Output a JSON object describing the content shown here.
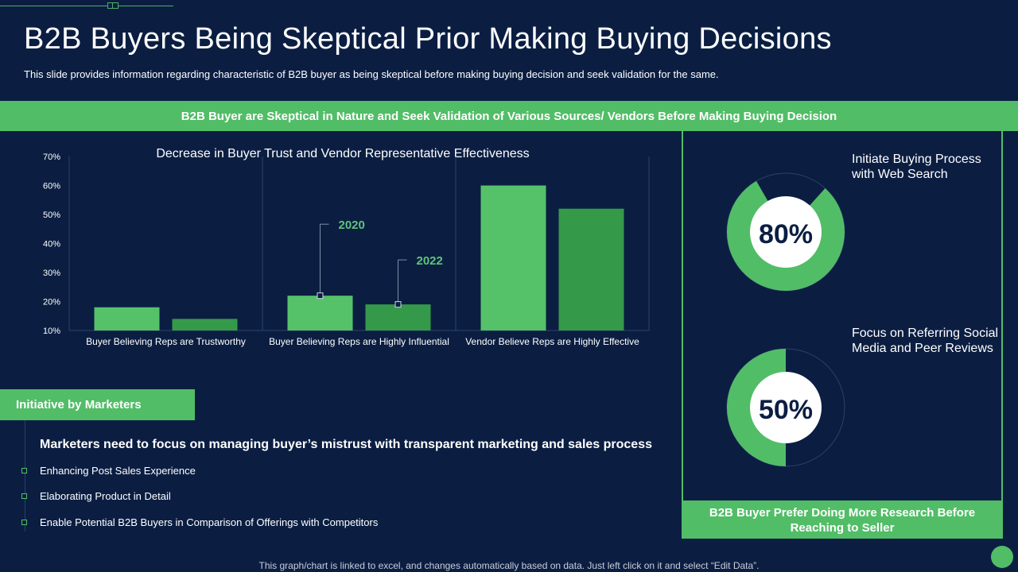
{
  "title": "B2B Buyers Being Skeptical Prior Making Buying Decisions",
  "subtitle": "This slide provides information regarding characteristic of B2B buyer as being skeptical before making buying decision and seek validation for the same.",
  "banner": "B2B Buyer are Skeptical in Nature and Seek Validation of Various Sources/ Vendors Before Making Buying Decision",
  "chart_data": {
    "type": "bar",
    "title": "Decrease in Buyer Trust and Vendor Representative Effectiveness",
    "categories": [
      "Buyer Believing Reps are Trustworthy",
      "Buyer Believing Reps are Highly Influential",
      "Vendor Believe Reps are Highly Effective"
    ],
    "series": [
      {
        "name": "2020",
        "values": [
          18,
          22,
          60
        ]
      },
      {
        "name": "2022",
        "values": [
          14,
          19,
          52
        ]
      }
    ],
    "yticks": [
      "10%",
      "20%",
      "30%",
      "40%",
      "50%",
      "60%",
      "70%"
    ],
    "ylim": [
      10,
      70
    ],
    "grid": false,
    "colors": [
      "#55c26a",
      "#35994a"
    ]
  },
  "initiative": {
    "tab_label": "Initiative by Marketers",
    "heading": "Marketers need to focus on managing buyer’s mistrust with transparent marketing and sales process",
    "items": [
      "Enhancing Post Sales Experience",
      "Elaborating Product in Detail",
      "Enable Potential B2B Buyers in Comparison of Offerings with Competitors"
    ]
  },
  "stats": [
    {
      "percent": 80,
      "label": "80%",
      "text": "Initiate Buying Process with Web Search"
    },
    {
      "percent": 50,
      "label": "50%",
      "text": "Focus on Referring Social Media and Peer Reviews"
    }
  ],
  "right_banner": "B2B Buyer Prefer Doing More Research Before Reaching to Seller",
  "footer_note": "This graph/chart is linked to excel, and changes automatically based on data. Just left click on it and select “Edit Data”.",
  "colors": {
    "background": "#0b1e42",
    "accent": "#52bd67",
    "accent_dark": "#35994a"
  }
}
